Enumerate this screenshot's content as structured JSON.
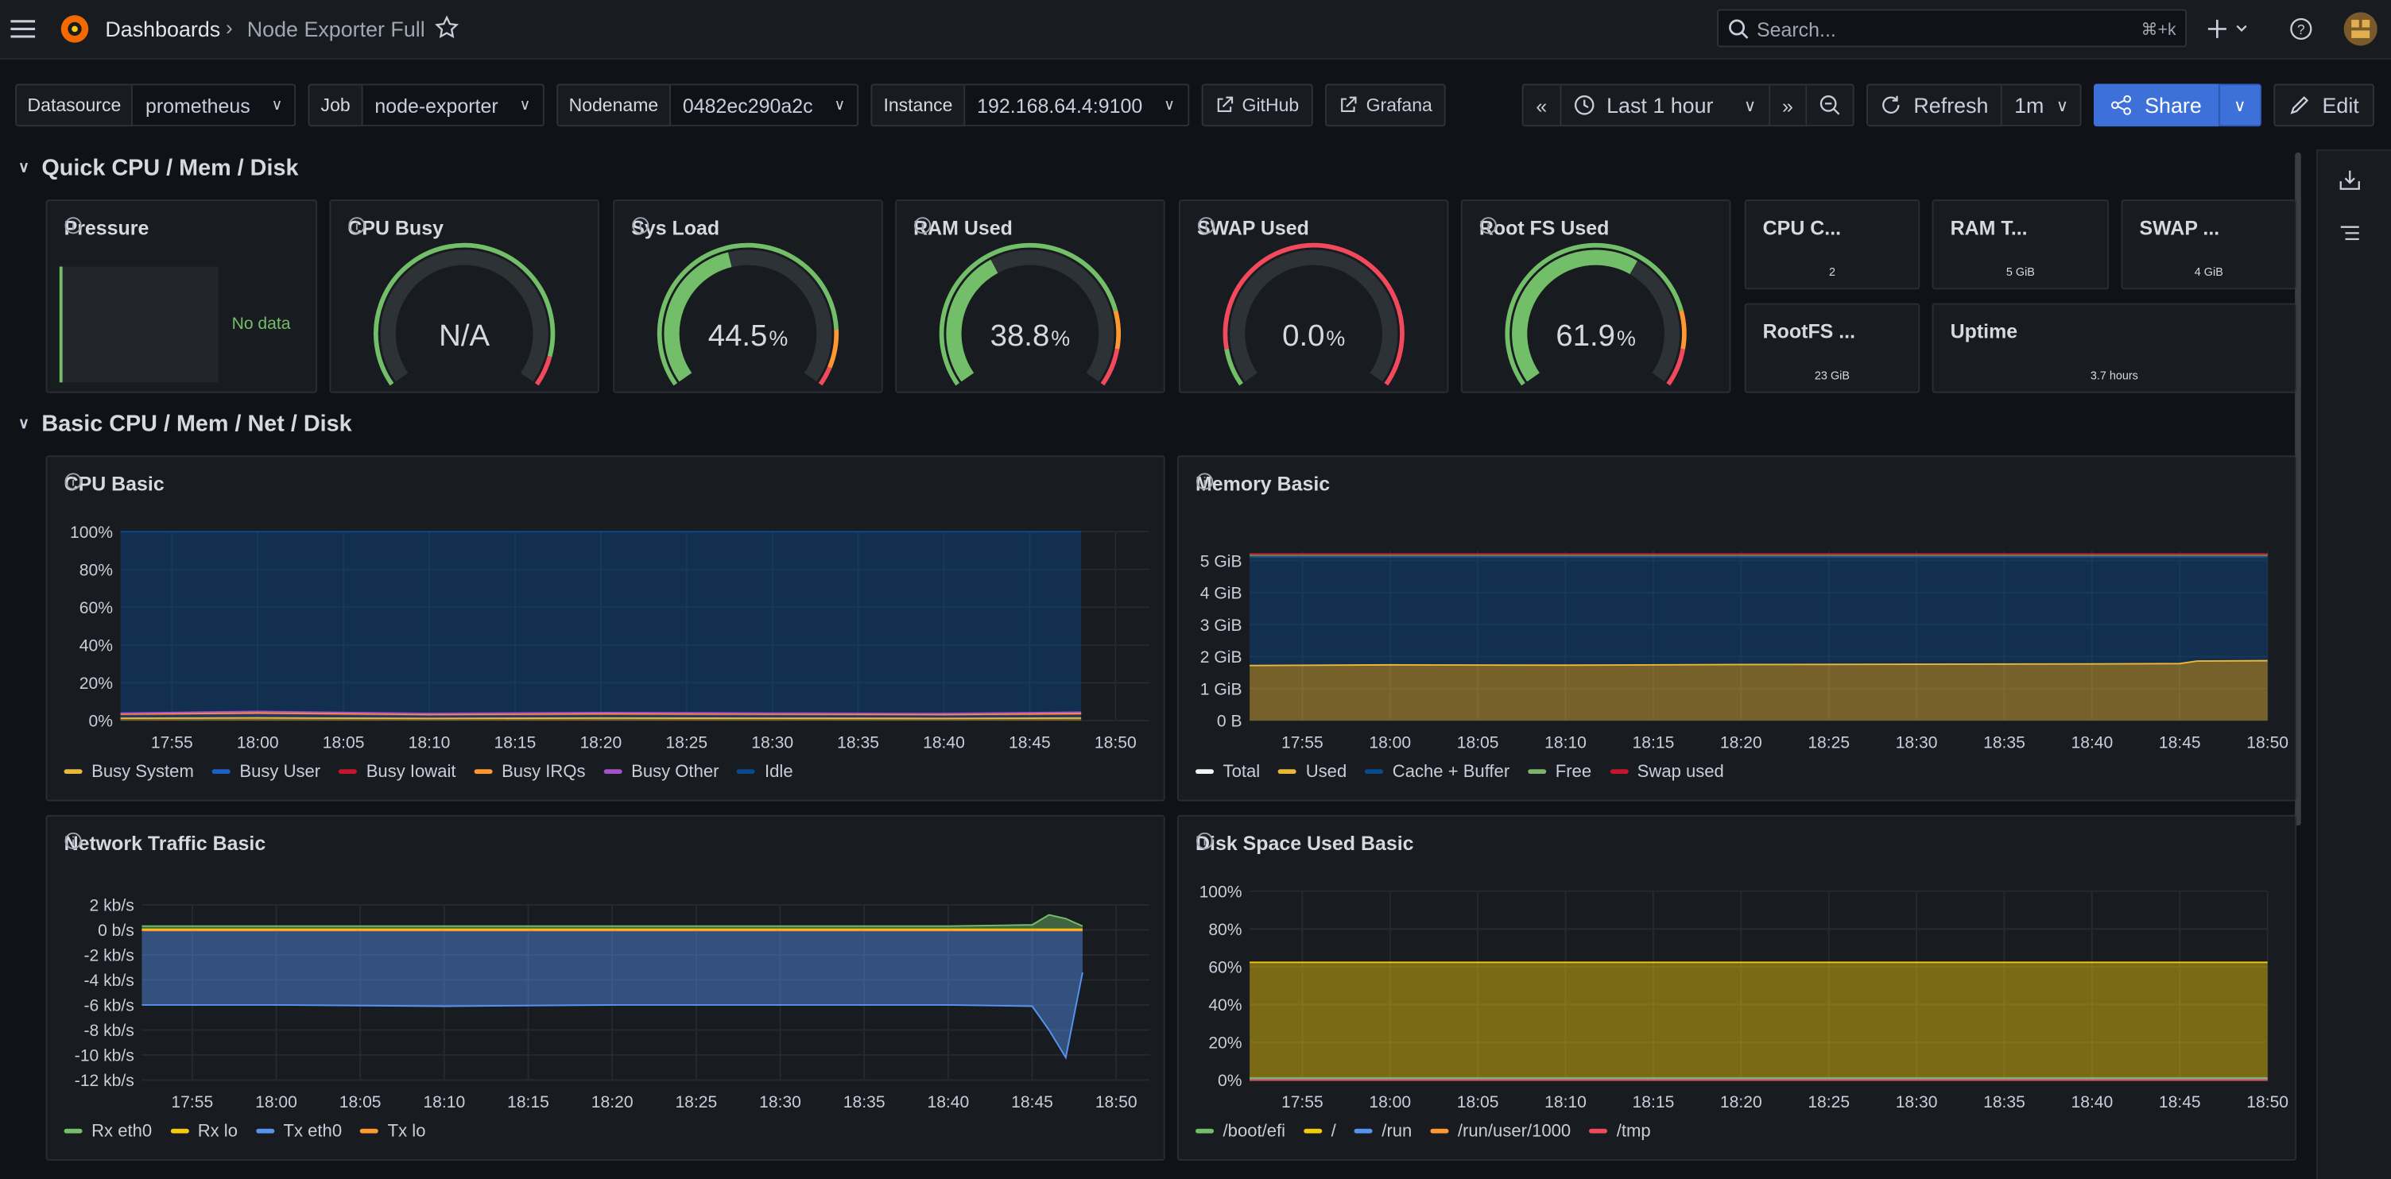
{
  "header": {
    "breadcrumbs": [
      "Dashboards",
      "Node Exporter Full"
    ],
    "search": "Search...",
    "shortcut": "⌘+k"
  },
  "variables": [
    {
      "label": "Datasource",
      "value": "prometheus"
    },
    {
      "label": "Job",
      "value": "node-exporter"
    },
    {
      "label": "Nodename",
      "value": "0482ec290a2c"
    },
    {
      "label": "Instance",
      "value": "192.168.64.4:9100"
    }
  ],
  "links": [
    "GitHub",
    "Grafana"
  ],
  "toolbar": {
    "time_range": "Last 1 hour",
    "refresh": "Refresh",
    "interval": "1m",
    "share": "Share",
    "edit": "Edit"
  },
  "rows": [
    "Quick CPU / Mem / Disk",
    "Basic CPU / Mem / Net / Disk"
  ],
  "pressure": {
    "title": "Pressure",
    "message": "No data"
  },
  "gauge_range": [
    0,
    100
  ],
  "gauges": [
    {
      "title": "CPU Busy",
      "text": "N/A",
      "thresholds": [
        {
          "value": 0,
          "color": "#73BF69"
        },
        {
          "value": 92,
          "color": "#F2495C"
        }
      ]
    },
    {
      "title": "Sys Load",
      "value": 44.5,
      "unit": "%",
      "thresholds": [
        {
          "value": 0,
          "color": "#73BF69"
        },
        {
          "value": 85,
          "color": "#FF9830"
        },
        {
          "value": 95,
          "color": "#F2495C"
        }
      ]
    },
    {
      "title": "RAM Used",
      "value": 38.8,
      "unit": "%",
      "thresholds": [
        {
          "value": 0,
          "color": "#73BF69"
        },
        {
          "value": 80,
          "color": "#FF9830"
        },
        {
          "value": 90,
          "color": "#F2495C"
        }
      ]
    },
    {
      "title": "SWAP Used",
      "value": 0,
      "value_label": "0.0",
      "unit": "%",
      "thresholds": [
        {
          "value": 0,
          "color": "#73BF69"
        },
        {
          "value": 10,
          "color": "#F2495C"
        }
      ]
    },
    {
      "title": "Root FS Used",
      "value": 61.9,
      "unit": "%",
      "thresholds": [
        {
          "value": 0,
          "color": "#73BF69"
        },
        {
          "value": 80,
          "color": "#FF9830"
        },
        {
          "value": 90,
          "color": "#F2495C"
        }
      ]
    }
  ],
  "stats": [
    {
      "title": "CPU C...",
      "value": 2
    },
    {
      "title": "RAM T...",
      "value": 5,
      "unit": "GiB"
    },
    {
      "title": "SWAP ...",
      "value": 4,
      "unit": "GiB"
    },
    {
      "title": "RootFS ...",
      "value": 23,
      "unit": "GiB"
    },
    {
      "title": "Uptime",
      "value": 3.7,
      "unit": "hours"
    }
  ],
  "chart_data": [
    {
      "type": "area",
      "title": "CPU Basic",
      "stacked": true,
      "grid": true,
      "x": [
        "17:52",
        "18:00",
        "18:10",
        "18:20",
        "18:30",
        "18:40",
        "18:48"
      ],
      "xlim": [
        "17:52",
        "18:52"
      ],
      "xticks": [
        "17:55",
        "18:00",
        "18:05",
        "18:10",
        "18:15",
        "18:20",
        "18:25",
        "18:30",
        "18:35",
        "18:40",
        "18:45",
        "18:50"
      ],
      "ylim": [
        0,
        100
      ],
      "yticks": [
        {
          "value": 0,
          "label": "0%"
        },
        {
          "value": 20,
          "label": "20%"
        },
        {
          "value": 40,
          "label": "40%"
        },
        {
          "value": 60,
          "label": "60%"
        },
        {
          "value": 80,
          "label": "80%"
        },
        {
          "value": 100,
          "label": "100%"
        }
      ],
      "series": [
        {
          "name": "Busy System",
          "color": "#EAB839",
          "values": [
            1.2,
            1.4,
            1.1,
            1.3,
            1.2,
            1.1,
            1.3
          ]
        },
        {
          "name": "Busy User",
          "color": "#1F60C4",
          "values": [
            1.9,
            2.3,
            1.8,
            2.0,
            1.9,
            1.8,
            2.1
          ]
        },
        {
          "name": "Busy Iowait",
          "color": "#C4162A",
          "values": [
            0.1,
            0.1,
            0.1,
            0.1,
            0.1,
            0.1,
            0.1
          ]
        },
        {
          "name": "Busy IRQs",
          "color": "#FF9830",
          "values": [
            0.2,
            0.2,
            0.2,
            0.2,
            0.2,
            0.2,
            0.2
          ]
        },
        {
          "name": "Busy Other",
          "color": "#A352CC",
          "values": [
            0.5,
            0.8,
            0.5,
            0.6,
            0.5,
            0.5,
            0.7
          ]
        },
        {
          "name": "Idle",
          "color": "#0A4A8C",
          "values": [
            96.1,
            95.2,
            96.3,
            95.8,
            96.1,
            96.3,
            95.6
          ]
        }
      ]
    },
    {
      "type": "area",
      "title": "Memory Basic",
      "stacked": true,
      "grid": true,
      "x": [
        "17:52",
        "18:00",
        "18:10",
        "18:20",
        "18:30",
        "18:40",
        "18:45",
        "18:46",
        "18:50"
      ],
      "xlim": [
        "17:52",
        "18:50"
      ],
      "xticks": [
        "17:55",
        "18:00",
        "18:05",
        "18:10",
        "18:15",
        "18:20",
        "18:25",
        "18:30",
        "18:35",
        "18:40",
        "18:45",
        "18:50"
      ],
      "ylim": [
        0,
        5.3
      ],
      "yticks": [
        {
          "value": 0,
          "label": "0 B"
        },
        {
          "value": 1,
          "label": "1 GiB"
        },
        {
          "value": 2,
          "label": "2 GiB"
        },
        {
          "value": 3,
          "label": "3 GiB"
        },
        {
          "value": 4,
          "label": "4 GiB"
        },
        {
          "value": 5,
          "label": "5 GiB"
        }
      ],
      "series": [
        {
          "name": "Total",
          "color": "#F4F5F5",
          "stack": false,
          "fill": false,
          "values": [
            5.2,
            5.2,
            5.2,
            5.2,
            5.2,
            5.2,
            5.2,
            5.2,
            5.2
          ]
        },
        {
          "name": "Used",
          "color": "#EAB839",
          "values": [
            1.72,
            1.74,
            1.73,
            1.75,
            1.76,
            1.77,
            1.78,
            1.86,
            1.87
          ]
        },
        {
          "name": "Cache + Buffer",
          "color": "#0A4A8C",
          "values": [
            3.38,
            3.36,
            3.37,
            3.35,
            3.34,
            3.33,
            3.32,
            3.24,
            3.23
          ]
        },
        {
          "name": "Free",
          "color": "#7EB26D",
          "values": [
            0.08,
            0.08,
            0.08,
            0.08,
            0.08,
            0.08,
            0.08,
            0.08,
            0.08
          ]
        },
        {
          "name": "Swap used",
          "color": "#C4162A",
          "values": [
            0.02,
            0.02,
            0.02,
            0.02,
            0.02,
            0.02,
            0.02,
            0.02,
            0.02
          ]
        }
      ]
    },
    {
      "type": "area",
      "title": "Network Traffic Basic",
      "stacked": false,
      "grid": true,
      "x": [
        "17:52",
        "18:00",
        "18:10",
        "18:20",
        "18:30",
        "18:40",
        "18:45",
        "18:46",
        "18:47",
        "18:48"
      ],
      "xlim": [
        "17:52",
        "18:52"
      ],
      "xticks": [
        "17:55",
        "18:00",
        "18:05",
        "18:10",
        "18:15",
        "18:20",
        "18:25",
        "18:30",
        "18:35",
        "18:40",
        "18:45",
        "18:50"
      ],
      "ylim": [
        -12,
        2
      ],
      "yticks": [
        {
          "value": 2,
          "label": "2 kb/s"
        },
        {
          "value": 0,
          "label": "0 b/s"
        },
        {
          "value": -2,
          "label": "-2 kb/s"
        },
        {
          "value": -4,
          "label": "-4 kb/s"
        },
        {
          "value": -6,
          "label": "-6 kb/s"
        },
        {
          "value": -8,
          "label": "-8 kb/s"
        },
        {
          "value": -10,
          "label": "-10 kb/s"
        },
        {
          "value": -12,
          "label": "-12 kb/s"
        }
      ],
      "series": [
        {
          "name": "Rx eth0",
          "color": "#73BF69",
          "values": [
            0.3,
            0.3,
            0.3,
            0.3,
            0.3,
            0.3,
            0.4,
            1.2,
            0.9,
            0.3
          ]
        },
        {
          "name": "Rx lo",
          "color": "#F2CC0C",
          "values": [
            0.05,
            0.05,
            0.05,
            0.05,
            0.05,
            0.05,
            0.05,
            0.05,
            0.05,
            0.05
          ]
        },
        {
          "name": "Tx eth0",
          "color": "#5794F2",
          "values": [
            -6,
            -6,
            -6.1,
            -6,
            -6,
            -6,
            -6.1,
            -8,
            -10.2,
            -3.4
          ]
        },
        {
          "name": "Tx lo",
          "color": "#FF9830",
          "values": [
            -0.05,
            -0.05,
            -0.05,
            -0.05,
            -0.05,
            -0.05,
            -0.05,
            -0.05,
            -0.05,
            -0.05
          ]
        }
      ]
    },
    {
      "type": "area",
      "title": "Disk Space Used Basic",
      "stacked": false,
      "grid": true,
      "x": [
        "17:52",
        "18:50"
      ],
      "xlim": [
        "17:52",
        "18:50"
      ],
      "xticks": [
        "17:55",
        "18:00",
        "18:05",
        "18:10",
        "18:15",
        "18:20",
        "18:25",
        "18:30",
        "18:35",
        "18:40",
        "18:45",
        "18:50"
      ],
      "ylim": [
        0,
        100
      ],
      "yticks": [
        {
          "value": 0,
          "label": "0%"
        },
        {
          "value": 20,
          "label": "20%"
        },
        {
          "value": 40,
          "label": "40%"
        },
        {
          "value": 60,
          "label": "60%"
        },
        {
          "value": 80,
          "label": "80%"
        },
        {
          "value": 100,
          "label": "100%"
        }
      ],
      "series": [
        {
          "name": "/boot/efi",
          "color": "#73BF69",
          "values": [
            1.1,
            1.1
          ]
        },
        {
          "name": "/",
          "color": "#F2CC0C",
          "values": [
            62.3,
            62.3
          ]
        },
        {
          "name": "/run",
          "color": "#5794F2",
          "values": [
            0.2,
            0.2
          ]
        },
        {
          "name": "/run/user/1000",
          "color": "#FF9830",
          "values": [
            0,
            0
          ]
        },
        {
          "name": "/tmp",
          "color": "#F2495C",
          "values": [
            0,
            0
          ]
        }
      ]
    }
  ]
}
